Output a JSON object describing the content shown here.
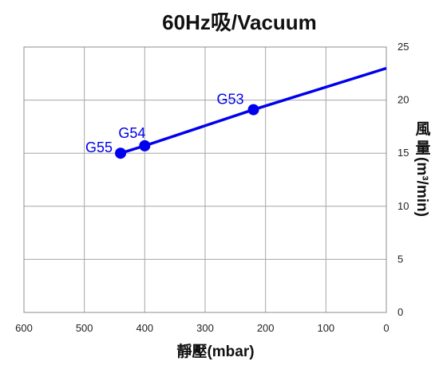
{
  "chart_data": {
    "type": "line",
    "title": "60Hz吸/Vacuum",
    "xlabel": "靜壓(mbar)",
    "ylabel_chars": [
      "風",
      "量"
    ],
    "ylabel_unit": "(m³/min)",
    "xlim": [
      600,
      0
    ],
    "ylim": [
      0,
      25
    ],
    "x_ticks": [
      600,
      500,
      400,
      300,
      200,
      100,
      0
    ],
    "y_ticks": [
      0,
      5,
      10,
      15,
      20,
      25
    ],
    "x_tick_labels": [
      "600",
      "500",
      "400",
      "300",
      "200",
      "100",
      "0"
    ],
    "y_tick_labels": [
      "0",
      "5",
      "10",
      "15",
      "20",
      "25"
    ],
    "grid": true,
    "y_axis_side": "right",
    "series": [
      {
        "color": "#0000ee",
        "x": [
          440,
          400,
          220,
          0
        ],
        "y": [
          15.0,
          15.7,
          19.1,
          23.0
        ]
      }
    ],
    "annotated_points": [
      {
        "label": "G55",
        "x": 440,
        "y": 15.0
      },
      {
        "label": "G54",
        "x": 400,
        "y": 15.7
      },
      {
        "label": "G53",
        "x": 220,
        "y": 19.1
      }
    ]
  }
}
